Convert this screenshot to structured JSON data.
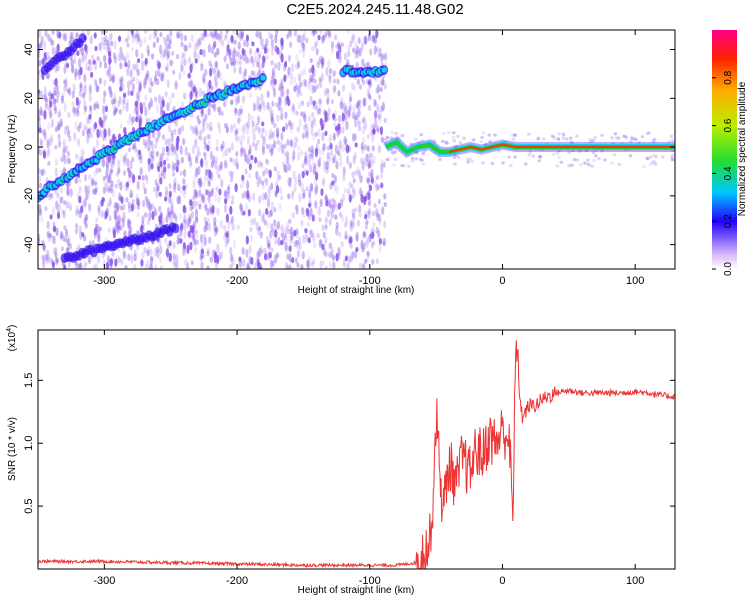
{
  "title": "C2E5.2024.245.11.48.G02",
  "colors": {
    "snr_line": "#ee3333",
    "track_core": "#22cc33",
    "track_edge": "#00d8ff",
    "track_far": "#3311ee",
    "noise": "#8a55e8"
  },
  "chart_data": [
    {
      "type": "heatmap",
      "title": "C2E5.2024.245.11.48.G02",
      "xlabel": "Height of straight line (km)",
      "ylabel": "Frequency (Hz)",
      "xlim": [
        -350,
        130
      ],
      "ylim": [
        -50,
        48
      ],
      "xticks": [
        -300,
        -200,
        -100,
        0,
        100
      ],
      "yticks": [
        -40,
        -20,
        0,
        20,
        40
      ],
      "colorbar": {
        "label": "Normalized spectral amplitude",
        "range": [
          0,
          1
        ],
        "ticks": [
          "0.0",
          "0.2",
          "0.4",
          "0.6",
          "0.8"
        ],
        "tick_values": [
          0.0,
          0.2,
          0.4,
          0.6,
          0.8
        ],
        "colormap": "rainbow",
        "position": "right"
      },
      "tracks": [
        {
          "x": [
            -350,
            -340,
            -325,
            -310,
            -295,
            -280,
            -265,
            -250,
            -235,
            -220,
            -205,
            -190,
            -180
          ],
          "y": [
            -20,
            -16,
            -11,
            -6,
            -1,
            4,
            8,
            12,
            16,
            20,
            23,
            26,
            28
          ],
          "amplitude": 0.4
        },
        {
          "x": [
            -120,
            -110,
            -100,
            -92,
            -88
          ],
          "y": [
            31,
            31,
            31,
            31,
            31
          ],
          "amplitude": 0.35
        },
        {
          "x": [
            -88,
            -80,
            -72,
            -64,
            -55,
            -47,
            -40,
            -32,
            -24,
            -16,
            -8,
            0,
            10,
            30,
            60,
            100,
            130
          ],
          "y": [
            0,
            2,
            -2,
            0,
            1,
            -2,
            -2,
            -1,
            0,
            -1,
            0,
            1,
            0,
            0,
            0,
            0,
            0
          ],
          "amplitude": 0.9
        },
        {
          "x": [
            -330,
            -300,
            -270,
            -245
          ],
          "y": [
            -46,
            -41,
            -37,
            -33
          ],
          "amplitude": 0.25
        },
        {
          "x": [
            -345,
            -330,
            -315
          ],
          "y": [
            32,
            38,
            45
          ],
          "amplitude": 0.2
        }
      ]
    },
    {
      "type": "line",
      "xlabel": "Height of straight line (km)",
      "ylabel": "SNR (10 * v/v)",
      "multiplier_label": "(x10",
      "multiplier_exp": "4",
      "xlim": [
        -350,
        130
      ],
      "ylim": [
        0,
        1.9
      ],
      "xticks": [
        -300,
        -200,
        -100,
        0,
        100
      ],
      "yticks": [
        0.5,
        1.0,
        1.5
      ],
      "ytick_labels": [
        "0.5",
        "1.0",
        "1.5"
      ],
      "series": [
        {
          "x": [
            -350,
            -300,
            -250,
            -200,
            -150,
            -100,
            -80,
            -65,
            -55,
            -52,
            -50,
            -45,
            -40,
            -35,
            -30,
            -25,
            -20,
            -15,
            -10,
            -5,
            0,
            5,
            8,
            10,
            12,
            15,
            20,
            25,
            30,
            40,
            50,
            60,
            70,
            80,
            90,
            100,
            110,
            120,
            130
          ],
          "y": [
            0.06,
            0.06,
            0.05,
            0.04,
            0.03,
            0.03,
            0.03,
            0.05,
            0.2,
            0.6,
            1.25,
            0.45,
            0.85,
            0.65,
            0.9,
            0.75,
            0.95,
            0.9,
            1.05,
            1.0,
            1.1,
            1.05,
            0.35,
            1.9,
            1.5,
            1.2,
            1.3,
            1.3,
            1.35,
            1.4,
            1.42,
            1.4,
            1.4,
            1.4,
            1.4,
            1.41,
            1.4,
            1.38,
            1.37
          ]
        }
      ]
    }
  ]
}
